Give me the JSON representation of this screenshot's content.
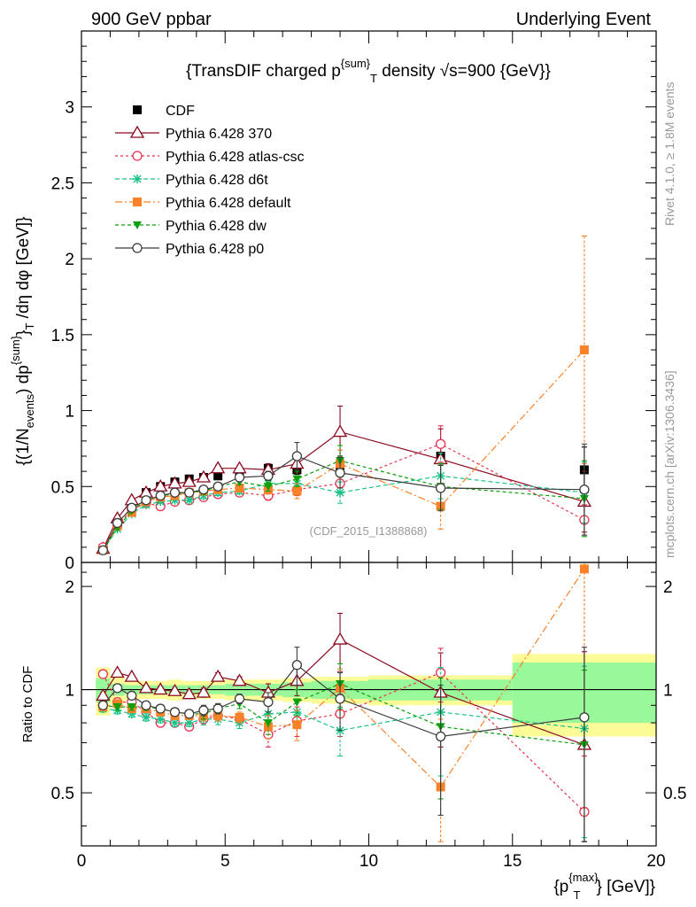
{
  "header": {
    "left": "900 GeV ppbar",
    "right": "Underlying Event"
  },
  "side_texts": {
    "rivet": "Rivet 4.1.0, ≥ 1.8M events",
    "mcplots": "mcplots.cern.ch [arXiv:1306.3436]"
  },
  "analysis_id": "(CDF_2015_I1388868)",
  "colors": {
    "cdf": "#000000",
    "p370": "#8b0a1f",
    "atlas": "#e8334f",
    "d6t": "#17c389",
    "default": "#f98228",
    "dw": "#0aa00a",
    "p0": "#3c3c3c",
    "band_stat": "#99f899",
    "band_sys": "#fbfb98"
  },
  "chart_data": [
    {
      "type": "scatter",
      "title": "{TransDIF charged p^{sum}_T density √s=900 {GeV}}",
      "title_parts": {
        "a": "{TransDIF charged p",
        "sup": "{sum}",
        "sub": "T",
        "b": " density √s=900 {GeV}}"
      },
      "ylabel_parts": {
        "a": "{(1/N",
        "sub1": "events",
        "b": ") dp",
        "sup": "{sum}",
        "c": "}",
        "sub2": "T",
        "d": " /dη dφ [GeV]}"
      },
      "xlim": [
        0,
        20
      ],
      "ylim": [
        0,
        3.5
      ],
      "yticks": [
        0,
        0.5,
        1,
        1.5,
        2,
        2.5,
        3
      ],
      "ytick_labels": [
        "0",
        "0.5",
        "1",
        "1.5",
        "2",
        "2.5",
        "3"
      ],
      "x": [
        0.75,
        1.25,
        1.75,
        2.25,
        2.75,
        3.25,
        3.75,
        4.25,
        4.75,
        5.5,
        6.5,
        7.5,
        9.0,
        12.5,
        17.5
      ],
      "series": [
        {
          "key": "cdf",
          "name": "CDF",
          "marker": "square-filled",
          "dash": "none",
          "values": [
            0.09,
            0.26,
            0.38,
            0.46,
            0.5,
            0.53,
            0.55,
            0.56,
            0.57,
            0.59,
            0.62,
            0.61,
            0.64,
            0.7,
            0.61
          ],
          "err": [
            0.01,
            0.01,
            0.01,
            0.01,
            0.01,
            0.01,
            0.01,
            0.01,
            0.02,
            0.02,
            0.02,
            0.03,
            0.06,
            0.06,
            0.15
          ]
        },
        {
          "key": "p370",
          "name": "Pythia 6.428 370",
          "marker": "triangle-open",
          "dash": "solid",
          "values": [
            0.09,
            0.29,
            0.41,
            0.46,
            0.5,
            0.52,
            0.53,
            0.56,
            0.62,
            0.62,
            0.61,
            0.65,
            0.86,
            0.68,
            0.4
          ],
          "err": [
            0.01,
            0.01,
            0.01,
            0.01,
            0.01,
            0.01,
            0.01,
            0.02,
            0.02,
            0.02,
            0.04,
            0.06,
            0.17,
            0.2,
            0.2
          ]
        },
        {
          "key": "atlas",
          "name": "Pythia 6.428 atlas-csc",
          "marker": "circle-open",
          "dash": "3,3",
          "values": [
            0.1,
            0.24,
            0.35,
            0.39,
            0.37,
            0.4,
            0.41,
            0.43,
            0.45,
            0.46,
            0.44,
            0.48,
            0.52,
            0.78,
            0.28
          ],
          "err": [
            0.01,
            0.01,
            0.01,
            0.01,
            0.01,
            0.01,
            0.01,
            0.01,
            0.02,
            0.02,
            0.03,
            0.04,
            0.07,
            0.12,
            0.1
          ]
        },
        {
          "key": "d6t",
          "name": "Pythia 6.428 d6t",
          "marker": "star",
          "dash": "5,3",
          "values": [
            0.08,
            0.22,
            0.32,
            0.38,
            0.4,
            0.41,
            0.41,
            0.44,
            0.46,
            0.47,
            0.52,
            0.52,
            0.46,
            0.57,
            0.46
          ],
          "err": [
            0.01,
            0.01,
            0.01,
            0.01,
            0.01,
            0.01,
            0.01,
            0.02,
            0.02,
            0.02,
            0.03,
            0.05,
            0.07,
            0.15,
            0.2
          ]
        },
        {
          "key": "default",
          "name": "Pythia 6.428 default",
          "marker": "square-filled",
          "dash": "8,3,2,3",
          "values": [
            0.08,
            0.24,
            0.33,
            0.4,
            0.43,
            0.44,
            0.46,
            0.47,
            0.48,
            0.49,
            0.48,
            0.47,
            0.65,
            0.37,
            1.4
          ],
          "err": [
            0.01,
            0.01,
            0.01,
            0.01,
            0.01,
            0.01,
            0.01,
            0.01,
            0.02,
            0.02,
            0.03,
            0.05,
            0.09,
            0.15,
            0.75
          ]
        },
        {
          "key": "dw",
          "name": "Pythia 6.428 dw",
          "marker": "triangle-down-filled",
          "dash": "4,3",
          "values": [
            0.08,
            0.23,
            0.34,
            0.41,
            0.44,
            0.45,
            0.46,
            0.47,
            0.5,
            0.53,
            0.5,
            0.55,
            0.67,
            0.5,
            0.42
          ],
          "err": [
            0.01,
            0.01,
            0.01,
            0.01,
            0.01,
            0.01,
            0.01,
            0.02,
            0.02,
            0.02,
            0.03,
            0.05,
            0.1,
            0.15,
            0.25
          ]
        },
        {
          "key": "p0",
          "name": "Pythia 6.428 p0",
          "marker": "circle-open",
          "dash": "solid",
          "values": [
            0.08,
            0.26,
            0.36,
            0.41,
            0.44,
            0.46,
            0.46,
            0.48,
            0.5,
            0.56,
            0.57,
            0.7,
            0.59,
            0.49,
            0.48
          ],
          "err": [
            0.01,
            0.01,
            0.01,
            0.01,
            0.01,
            0.01,
            0.01,
            0.02,
            0.02,
            0.02,
            0.03,
            0.09,
            0.1,
            0.15,
            0.3
          ]
        }
      ]
    },
    {
      "type": "scatter",
      "ylabel": "Ratio to CDF",
      "xlabel_parts": {
        "a": "{p",
        "sup": "{max}",
        "sub": "T",
        "b": "} [GeV]}"
      },
      "xlim": [
        0,
        20
      ],
      "ylim": [
        0.35,
        2.35
      ],
      "xticks": [
        0,
        5,
        10,
        15,
        20
      ],
      "xtick_labels": [
        "0",
        "5",
        "10",
        "15",
        "20"
      ],
      "yticks": [
        0.5,
        1,
        2
      ],
      "ytick_labels": [
        "0.5",
        "1",
        "2"
      ],
      "band_bins": [
        0.5,
        1.0,
        1.5,
        2.0,
        2.5,
        3.0,
        3.5,
        4.0,
        4.5,
        5.0,
        6.0,
        7.0,
        8.0,
        10.0,
        15.0,
        20.0
      ],
      "band_stat": [
        0.08,
        0.04,
        0.03,
        0.03,
        0.03,
        0.03,
        0.03,
        0.03,
        0.03,
        0.04,
        0.04,
        0.05,
        0.06,
        0.07,
        0.2
      ],
      "band_total": [
        0.16,
        0.09,
        0.07,
        0.06,
        0.06,
        0.07,
        0.06,
        0.06,
        0.06,
        0.07,
        0.07,
        0.08,
        0.09,
        0.1,
        0.27
      ],
      "series": [
        {
          "key": "cdf",
          "values": [
            1,
            1,
            1,
            1,
            1,
            1,
            1,
            1,
            1,
            1,
            1,
            1,
            1,
            1,
            1
          ],
          "err": [
            0,
            0,
            0,
            0,
            0,
            0,
            0,
            0,
            0,
            0,
            0,
            0,
            0,
            0,
            0
          ]
        },
        {
          "key": "p370",
          "values": [
            0.96,
            1.12,
            1.09,
            1.01,
            1.0,
            0.99,
            0.97,
            0.98,
            1.09,
            1.06,
            0.98,
            1.06,
            1.4,
            0.98,
            0.69
          ],
          "err": [
            0.02,
            0.02,
            0.02,
            0.02,
            0.02,
            0.02,
            0.02,
            0.03,
            0.03,
            0.03,
            0.06,
            0.1,
            0.27,
            0.3,
            0.6
          ]
        },
        {
          "key": "atlas",
          "values": [
            1.11,
            0.92,
            0.92,
            0.86,
            0.8,
            0.8,
            0.78,
            0.82,
            0.84,
            0.82,
            0.74,
            0.81,
            0.85,
            1.12,
            0.44
          ],
          "err": [
            0.02,
            0.02,
            0.02,
            0.02,
            0.02,
            0.02,
            0.02,
            0.03,
            0.03,
            0.03,
            0.06,
            0.08,
            0.12,
            0.2,
            0.2
          ]
        },
        {
          "key": "d6t",
          "values": [
            0.88,
            0.87,
            0.85,
            0.83,
            0.82,
            0.8,
            0.8,
            0.82,
            0.82,
            0.8,
            0.85,
            0.86,
            0.76,
            0.86,
            0.77
          ],
          "err": [
            0.02,
            0.02,
            0.02,
            0.02,
            0.02,
            0.02,
            0.02,
            0.03,
            0.03,
            0.03,
            0.06,
            0.08,
            0.12,
            0.3,
            0.4
          ]
        },
        {
          "key": "default",
          "values": [
            0.89,
            0.91,
            0.88,
            0.88,
            0.86,
            0.84,
            0.84,
            0.84,
            0.84,
            0.83,
            0.78,
            0.79,
            1.01,
            0.52,
            2.25
          ],
          "err": [
            0.02,
            0.02,
            0.02,
            0.02,
            0.02,
            0.02,
            0.02,
            0.03,
            0.03,
            0.03,
            0.06,
            0.08,
            0.14,
            0.3,
            1.4
          ]
        },
        {
          "key": "dw",
          "values": [
            0.9,
            0.89,
            0.89,
            0.89,
            0.88,
            0.86,
            0.85,
            0.85,
            0.88,
            0.91,
            0.8,
            0.92,
            1.04,
            0.78,
            0.69
          ],
          "err": [
            0.02,
            0.02,
            0.02,
            0.02,
            0.02,
            0.02,
            0.02,
            0.03,
            0.03,
            0.03,
            0.06,
            0.08,
            0.15,
            0.3,
            0.45
          ]
        },
        {
          "key": "p0",
          "values": [
            0.9,
            1.01,
            0.96,
            0.9,
            0.88,
            0.86,
            0.85,
            0.87,
            0.88,
            0.94,
            0.92,
            1.18,
            0.94,
            0.73,
            0.83
          ],
          "err": [
            0.02,
            0.02,
            0.02,
            0.02,
            0.02,
            0.02,
            0.02,
            0.03,
            0.03,
            0.03,
            0.06,
            0.15,
            0.18,
            0.3,
            0.5
          ]
        }
      ]
    }
  ]
}
